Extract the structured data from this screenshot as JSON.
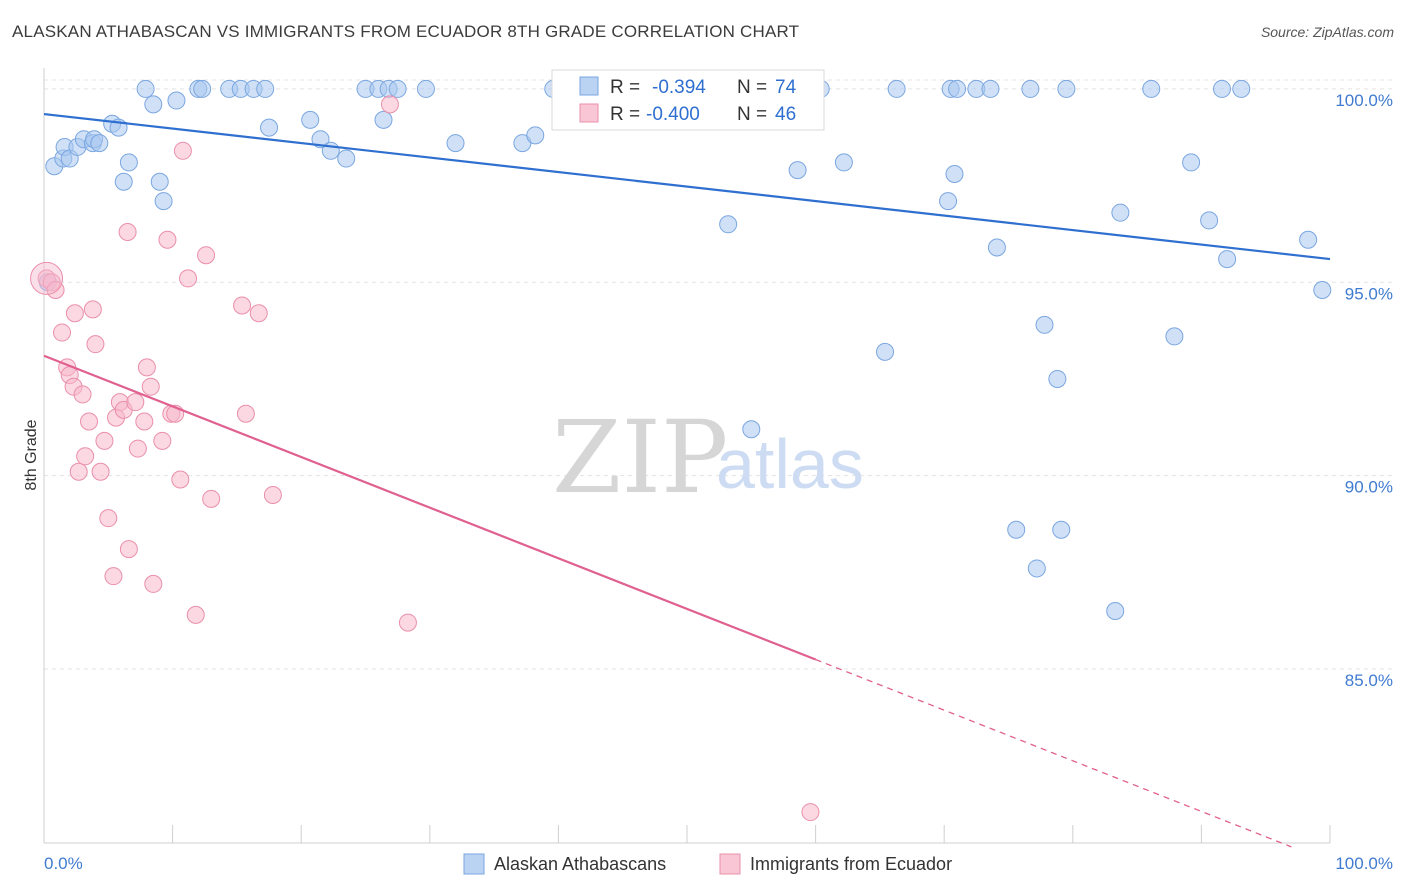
{
  "header": {
    "title": "ALASKAN ATHABASCAN VS IMMIGRANTS FROM ECUADOR 8TH GRADE CORRELATION CHART",
    "source": "Source: ZipAtlas.com"
  },
  "watermark": {
    "zip": "ZIP",
    "atlas": "atlas"
  },
  "legend": {
    "r_label": "R =",
    "n_label": "N =",
    "rows": [
      {
        "r": "-0.394",
        "n": "74",
        "color": "#a9c8f0"
      },
      {
        "r": "-0.400",
        "n": "46",
        "color": "#f7b8cb"
      }
    ]
  },
  "bottom_legend": [
    "Alaskan Athabascans",
    "Immigrants from Ecuador"
  ],
  "chart_data": {
    "type": "scatter",
    "title": "ALASKAN ATHABASCAN VS IMMIGRANTS FROM ECUADOR 8TH GRADE CORRELATION CHART",
    "xlabel": "",
    "ylabel": "8th Grade",
    "xlim": [
      0,
      100
    ],
    "ylim": [
      80.5,
      100.8
    ],
    "x_tick_labels": [
      "0.0%",
      "100.0%"
    ],
    "y_ticks": [
      85,
      90,
      95,
      100
    ],
    "y_tick_labels": [
      "85.0%",
      "90.0%",
      "95.0%",
      "100.0%"
    ],
    "grid": true,
    "legend_position": "top-center",
    "series": [
      {
        "name": "Alaskan Athabascans",
        "color": "#a9c8f0",
        "stroke": "#7aa6e0",
        "trend_color": "#2e6fcf",
        "trend": {
          "x0": 0,
          "y0": 99.35,
          "x1": 100,
          "y1": 95.6,
          "dashed_from": null
        },
        "points": [
          [
            0.3,
            95.0
          ],
          [
            0.8,
            98.0
          ],
          [
            1.5,
            98.2
          ],
          [
            1.6,
            98.5
          ],
          [
            2.0,
            98.2
          ],
          [
            2.6,
            98.5
          ],
          [
            3.1,
            98.7
          ],
          [
            3.8,
            98.6
          ],
          [
            3.9,
            98.7
          ],
          [
            4.3,
            98.6
          ],
          [
            5.3,
            99.1
          ],
          [
            5.8,
            99.0
          ],
          [
            6.2,
            97.6
          ],
          [
            6.6,
            98.1
          ],
          [
            7.9,
            100.0
          ],
          [
            8.5,
            99.6
          ],
          [
            9.0,
            97.6
          ],
          [
            9.3,
            97.1
          ],
          [
            10.3,
            99.7
          ],
          [
            12.0,
            100.0
          ],
          [
            12.3,
            100.0
          ],
          [
            14.4,
            100.0
          ],
          [
            15.3,
            100.0
          ],
          [
            16.3,
            100.0
          ],
          [
            17.2,
            100.0
          ],
          [
            17.5,
            99.0
          ],
          [
            20.7,
            99.2
          ],
          [
            21.5,
            98.7
          ],
          [
            22.3,
            98.4
          ],
          [
            23.5,
            98.2
          ],
          [
            25.0,
            100.0
          ],
          [
            26.0,
            100.0
          ],
          [
            26.4,
            99.2
          ],
          [
            26.8,
            100.0
          ],
          [
            27.5,
            100.0
          ],
          [
            29.7,
            100.0
          ],
          [
            32.0,
            98.6
          ],
          [
            37.2,
            98.6
          ],
          [
            38.2,
            98.8
          ],
          [
            39.6,
            100.0
          ],
          [
            41.7,
            100.0
          ],
          [
            53.2,
            96.5
          ],
          [
            55.0,
            91.2
          ],
          [
            58.2,
            100.0
          ],
          [
            58.6,
            97.9
          ],
          [
            60.4,
            100.0
          ],
          [
            62.2,
            98.1
          ],
          [
            65.4,
            93.2
          ],
          [
            66.3,
            100.0
          ],
          [
            70.3,
            97.1
          ],
          [
            70.5,
            100.0
          ],
          [
            70.8,
            97.8
          ],
          [
            71.0,
            100.0
          ],
          [
            72.5,
            100.0
          ],
          [
            73.6,
            100.0
          ],
          [
            74.1,
            95.9
          ],
          [
            75.6,
            88.6
          ],
          [
            76.7,
            100.0
          ],
          [
            77.2,
            87.6
          ],
          [
            77.8,
            93.9
          ],
          [
            78.8,
            92.5
          ],
          [
            79.1,
            88.6
          ],
          [
            79.5,
            100.0
          ],
          [
            83.3,
            86.5
          ],
          [
            83.7,
            96.8
          ],
          [
            86.1,
            100.0
          ],
          [
            87.9,
            93.6
          ],
          [
            89.2,
            98.1
          ],
          [
            90.6,
            96.6
          ],
          [
            91.6,
            100.0
          ],
          [
            92.0,
            95.6
          ],
          [
            93.1,
            100.0
          ],
          [
            98.3,
            96.1
          ],
          [
            99.4,
            94.8
          ]
        ]
      },
      {
        "name": "Immigrants from Ecuador",
        "color": "#f7b8cb",
        "stroke": "#ea8fab",
        "trend_color": "#e0608f",
        "trend": {
          "x0": 0,
          "y0": 93.1,
          "x1": 97,
          "y1": 80.4,
          "dashed_from": 60
        },
        "points": [
          [
            0.2,
            95.1
          ],
          [
            0.6,
            95.0
          ],
          [
            0.9,
            94.8
          ],
          [
            1.4,
            93.7
          ],
          [
            1.8,
            92.8
          ],
          [
            2.0,
            92.6
          ],
          [
            2.3,
            92.3
          ],
          [
            2.4,
            94.2
          ],
          [
            2.7,
            90.1
          ],
          [
            3.0,
            92.1
          ],
          [
            3.2,
            90.5
          ],
          [
            3.5,
            91.4
          ],
          [
            3.8,
            94.3
          ],
          [
            4.0,
            93.4
          ],
          [
            4.4,
            90.1
          ],
          [
            4.7,
            90.9
          ],
          [
            5.0,
            88.9
          ],
          [
            5.4,
            87.4
          ],
          [
            5.6,
            91.5
          ],
          [
            5.9,
            91.9
          ],
          [
            6.2,
            91.7
          ],
          [
            6.5,
            96.3
          ],
          [
            6.6,
            88.1
          ],
          [
            7.1,
            91.9
          ],
          [
            7.3,
            90.7
          ],
          [
            7.8,
            91.4
          ],
          [
            8.0,
            92.8
          ],
          [
            8.3,
            92.3
          ],
          [
            8.5,
            87.2
          ],
          [
            9.2,
            90.9
          ],
          [
            9.6,
            96.1
          ],
          [
            9.9,
            91.6
          ],
          [
            10.2,
            91.6
          ],
          [
            10.6,
            89.9
          ],
          [
            10.8,
            98.4
          ],
          [
            11.2,
            95.1
          ],
          [
            11.8,
            86.4
          ],
          [
            12.6,
            95.7
          ],
          [
            13.0,
            89.4
          ],
          [
            15.4,
            94.4
          ],
          [
            15.7,
            91.6
          ],
          [
            16.7,
            94.2
          ],
          [
            17.8,
            89.5
          ],
          [
            26.9,
            99.6
          ],
          [
            28.3,
            86.2
          ],
          [
            59.6,
            81.3
          ]
        ]
      }
    ]
  }
}
